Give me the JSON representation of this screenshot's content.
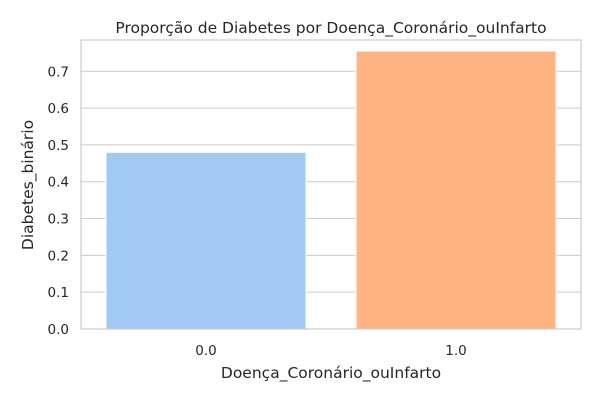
{
  "chart_data": {
    "type": "bar",
    "title": "Proporção de Diabetes por Doença_Coronário_ouInfarto",
    "xlabel": "Doença_Coronário_ouInfarto",
    "ylabel": "Diabetes_binário",
    "categories": [
      "0.0",
      "1.0"
    ],
    "values": [
      0.48,
      0.755
    ],
    "colors": [
      "#a1c9f4",
      "#ffb482"
    ],
    "ylim": [
      0,
      0.785
    ],
    "yticks": [
      "0.0",
      "0.1",
      "0.2",
      "0.3",
      "0.4",
      "0.5",
      "0.6",
      "0.7"
    ],
    "grid": "horizontal"
  }
}
